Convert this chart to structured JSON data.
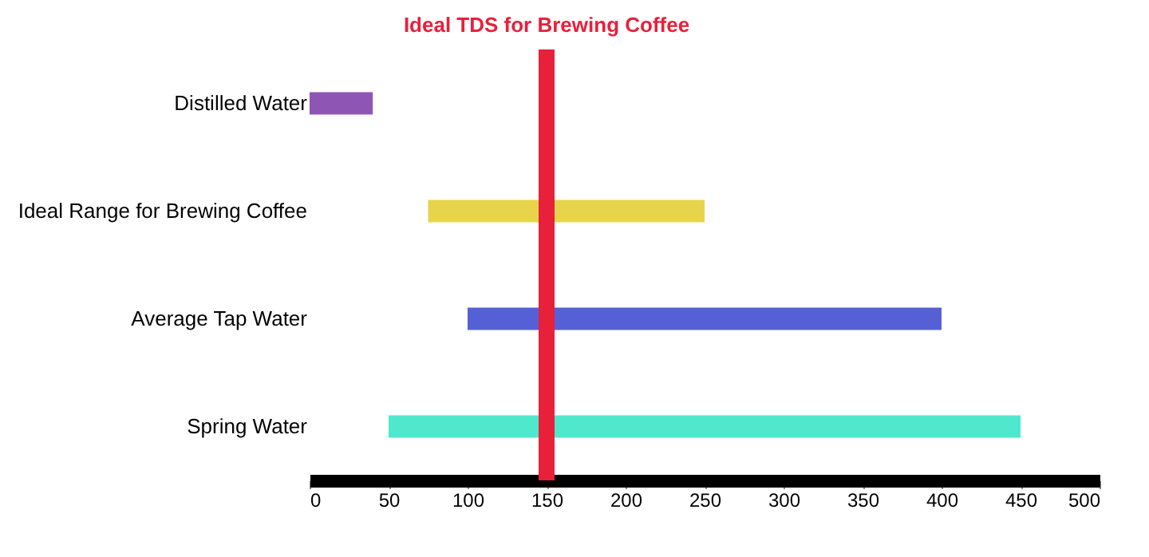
{
  "chart_data": {
    "type": "bar",
    "orientation": "horizontal",
    "categories": [
      "Distilled Water",
      "Ideal Range for Brewing Coffee",
      "Average Tap Water",
      "Spring Water"
    ],
    "base": [
      0,
      75,
      100,
      50
    ],
    "values": [
      40,
      175,
      300,
      400
    ],
    "colors": [
      "#8e55b5",
      "#e8d44a",
      "#5560d6",
      "#4fe8cc"
    ],
    "xlim": [
      0,
      500
    ],
    "xticks": [
      0,
      50,
      100,
      150,
      200,
      250,
      300,
      350,
      400,
      450,
      500
    ],
    "ref_lines": [
      {
        "axis": "x",
        "value": 150,
        "label": "Ideal TDS for Brewing Coffee",
        "color": "#e8203a"
      }
    ],
    "grid": false
  }
}
